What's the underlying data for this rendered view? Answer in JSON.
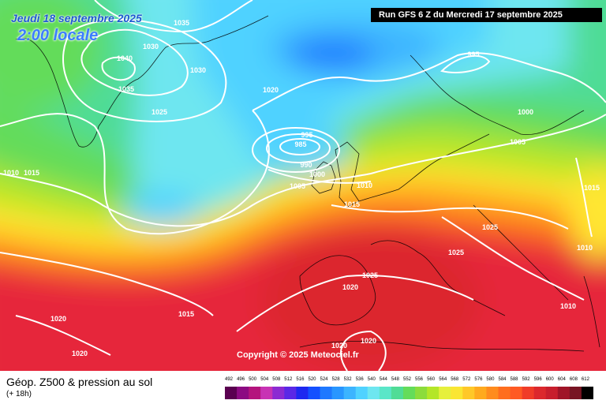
{
  "header": {
    "date_label": "Jeudi 18 septembre 2025",
    "hour_label": "2:00 locale",
    "run_label": "Run GFS 6 Z du Mercredi 17 septembre 2025"
  },
  "footer": {
    "title": "Géop. Z500 & pression au sol",
    "subtitle": "(+ 18h)",
    "copyright": "Copyright © 2025 Meteociel.fr"
  },
  "legend": {
    "values": [
      "492",
      "496",
      "500",
      "504",
      "508",
      "512",
      "516",
      "520",
      "524",
      "528",
      "532",
      "536",
      "540",
      "544",
      "548",
      "552",
      "556",
      "560",
      "564",
      "568",
      "572",
      "576",
      "580",
      "584",
      "588",
      "592",
      "596",
      "600",
      "604",
      "608",
      "612"
    ],
    "colors": [
      "#5a0050",
      "#8c0a82",
      "#b4147d",
      "#c832b4",
      "#8c2ad2",
      "#5a28e6",
      "#1e28f0",
      "#1450ff",
      "#1e78ff",
      "#2896ff",
      "#3cb4ff",
      "#50d2ff",
      "#6ee6f0",
      "#5ae6c8",
      "#50dc96",
      "#64dc5a",
      "#8cdc3c",
      "#b4e628",
      "#e6f03c",
      "#fae632",
      "#ffc828",
      "#ffaa1e",
      "#ff8c1e",
      "#ff6e1e",
      "#ff5a23",
      "#f03c28",
      "#dc282d",
      "#c81e2d",
      "#a01428",
      "#781423",
      "#000000"
    ]
  },
  "isobars": [
    {
      "id": "p1035a",
      "text": "1035"
    },
    {
      "id": "p1030a",
      "text": "1030"
    },
    {
      "id": "p1040",
      "text": "1040"
    },
    {
      "id": "p1030b",
      "text": "1030"
    },
    {
      "id": "p1035b",
      "text": "1035"
    },
    {
      "id": "p1025a",
      "text": "1025"
    },
    {
      "id": "p1020a",
      "text": "1020"
    },
    {
      "id": "p995a",
      "text": "995"
    },
    {
      "id": "p1000a",
      "text": "1000"
    },
    {
      "id": "p1005a",
      "text": "1005"
    },
    {
      "id": "p995b",
      "text": "995"
    },
    {
      "id": "p985",
      "text": "985"
    },
    {
      "id": "p990",
      "text": "990"
    },
    {
      "id": "p1000b",
      "text": "1000"
    },
    {
      "id": "p1005b",
      "text": "1005"
    },
    {
      "id": "p1010a",
      "text": "1010"
    },
    {
      "id": "p1015a",
      "text": "1015"
    },
    {
      "id": "p1010b",
      "text": "1010"
    },
    {
      "id": "p1015b",
      "text": "1015"
    },
    {
      "id": "p1015c",
      "text": "1015"
    },
    {
      "id": "p1025b",
      "text": "1025"
    },
    {
      "id": "p1025c",
      "text": "1025"
    },
    {
      "id": "p1010c",
      "text": "1010"
    },
    {
      "id": "p1025d",
      "text": "1025"
    },
    {
      "id": "p1020b",
      "text": "1020"
    },
    {
      "id": "p1010d",
      "text": "1010"
    },
    {
      "id": "p1020c",
      "text": "1020"
    },
    {
      "id": "p1015d",
      "text": "1015"
    },
    {
      "id": "p1020d",
      "text": "1020"
    },
    {
      "id": "p1020e",
      "text": "1020"
    },
    {
      "id": "p1020f",
      "text": "1020"
    }
  ]
}
